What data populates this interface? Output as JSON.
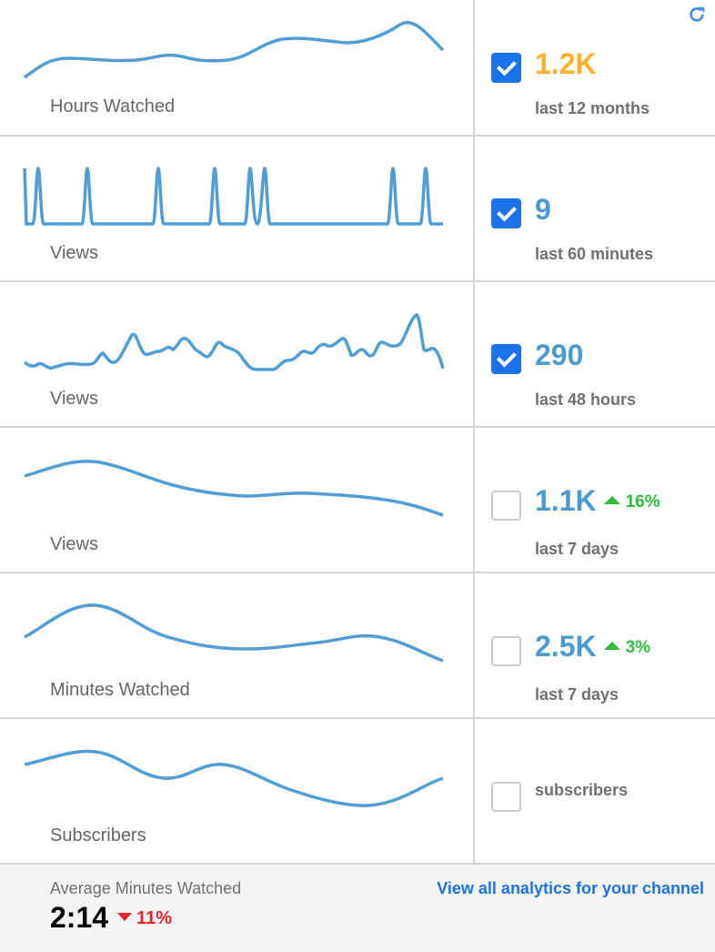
{
  "refresh_icon": "refresh-icon",
  "cards": [
    {
      "title": "Hours Watched",
      "value": "1.2K",
      "period": "last 12 months",
      "checked": true,
      "value_color": "#f9b12e"
    },
    {
      "title": "Views",
      "value": "9",
      "period": "last 60 minutes",
      "checked": true
    },
    {
      "title": "Views",
      "value": "290",
      "period": "last 48 hours",
      "checked": true
    },
    {
      "title": "Views",
      "value": "1.1K",
      "change": "16%",
      "period": "last 7 days",
      "checked": false
    },
    {
      "title": "Minutes Watched",
      "value": "2.5K",
      "change": "3%",
      "period": "last 7 days",
      "checked": false
    },
    {
      "title": "Subscribers",
      "period": "subscribers",
      "checked": false
    }
  ],
  "footer": {
    "label": "Average Minutes Watched",
    "value": "2:14",
    "change": "11%",
    "link": "View all analytics for your channel"
  },
  "colors": {
    "line": "#509ed3",
    "accent": "#1a73e8",
    "up": "#2dbe3c",
    "down": "#e8212b"
  }
}
